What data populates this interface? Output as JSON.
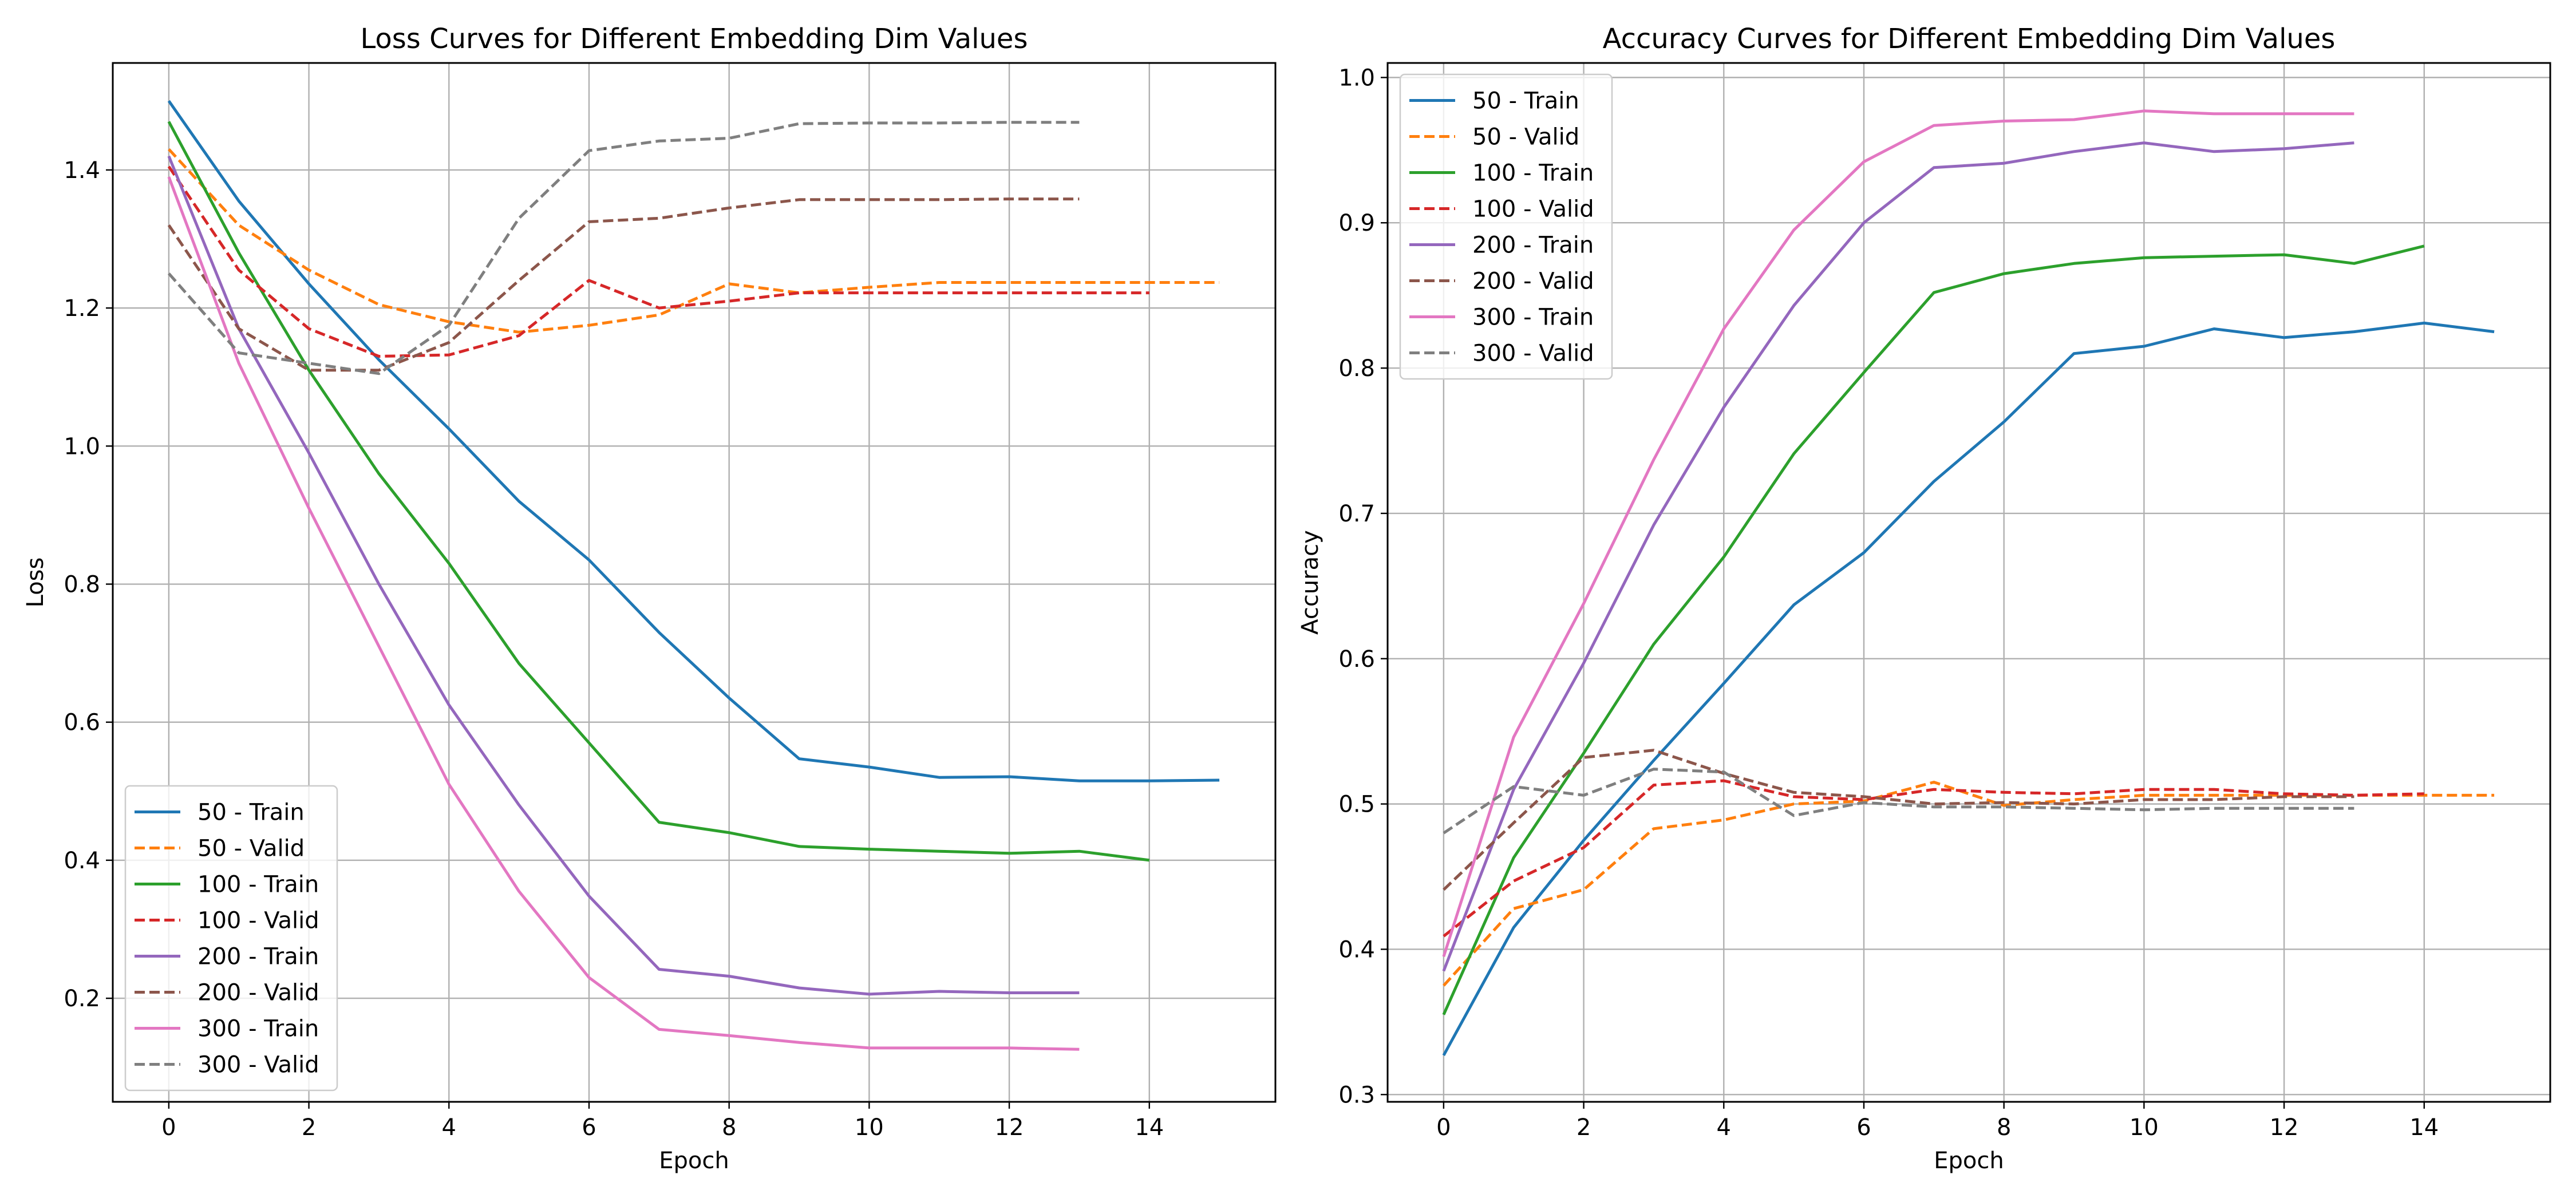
{
  "chart_data": [
    {
      "type": "line",
      "title": "Loss Curves for Different Embedding Dim Values",
      "xlabel": "Epoch",
      "ylabel": "Loss",
      "xlim": [
        -0.8,
        15.8
      ],
      "ylim": [
        0.05,
        1.555
      ],
      "xticks": [
        0,
        2,
        4,
        6,
        8,
        10,
        12,
        14
      ],
      "yticks": [
        0.2,
        0.4,
        0.6,
        0.8,
        1.0,
        1.2,
        1.4
      ],
      "grid": true,
      "legend_position": "lower-left",
      "series": [
        {
          "name": "50 - Train",
          "color": "#1f77b4",
          "dashed": false,
          "x": [
            0,
            1,
            2,
            3,
            4,
            5,
            6,
            7,
            8,
            9,
            10,
            11,
            12,
            13,
            14,
            15
          ],
          "y": [
            1.5,
            1.355,
            1.235,
            1.125,
            1.025,
            0.92,
            0.835,
            0.73,
            0.635,
            0.547,
            0.535,
            0.52,
            0.521,
            0.515,
            0.515,
            0.516
          ]
        },
        {
          "name": "50 - Valid",
          "color": "#ff7f0e",
          "dashed": true,
          "x": [
            0,
            1,
            2,
            3,
            4,
            5,
            6,
            7,
            8,
            9,
            10,
            11,
            12,
            13,
            14,
            15
          ],
          "y": [
            1.43,
            1.32,
            1.255,
            1.205,
            1.18,
            1.165,
            1.175,
            1.19,
            1.235,
            1.222,
            1.23,
            1.237,
            1.237,
            1.237,
            1.237,
            1.237
          ]
        },
        {
          "name": "100 - Train",
          "color": "#2ca02c",
          "dashed": false,
          "x": [
            0,
            1,
            2,
            3,
            4,
            5,
            6,
            7,
            8,
            9,
            10,
            11,
            12,
            13,
            14
          ],
          "y": [
            1.47,
            1.28,
            1.11,
            0.96,
            0.83,
            0.685,
            0.57,
            0.455,
            0.44,
            0.42,
            0.416,
            0.413,
            0.41,
            0.413,
            0.4
          ]
        },
        {
          "name": "100 - Valid",
          "color": "#d62728",
          "dashed": true,
          "x": [
            0,
            1,
            2,
            3,
            4,
            5,
            6,
            7,
            8,
            9,
            10,
            11,
            12,
            13,
            14
          ],
          "y": [
            1.405,
            1.255,
            1.17,
            1.13,
            1.132,
            1.16,
            1.24,
            1.2,
            1.21,
            1.222,
            1.222,
            1.222,
            1.222,
            1.222,
            1.222
          ]
        },
        {
          "name": "200 - Train",
          "color": "#9467bd",
          "dashed": false,
          "x": [
            0,
            1,
            2,
            3,
            4,
            5,
            6,
            7,
            8,
            9,
            10,
            11,
            12,
            13
          ],
          "y": [
            1.42,
            1.17,
            0.99,
            0.8,
            0.625,
            0.48,
            0.348,
            0.242,
            0.232,
            0.215,
            0.206,
            0.21,
            0.208,
            0.208
          ]
        },
        {
          "name": "200 - Valid",
          "color": "#8c564b",
          "dashed": true,
          "x": [
            0,
            1,
            2,
            3,
            4,
            5,
            6,
            7,
            8,
            9,
            10,
            11,
            12,
            13
          ],
          "y": [
            1.32,
            1.17,
            1.11,
            1.11,
            1.15,
            1.24,
            1.325,
            1.33,
            1.345,
            1.357,
            1.357,
            1.357,
            1.358,
            1.358
          ]
        },
        {
          "name": "300 - Train",
          "color": "#e377c2",
          "dashed": false,
          "x": [
            0,
            1,
            2,
            3,
            4,
            5,
            6,
            7,
            8,
            9,
            10,
            11,
            12,
            13
          ],
          "y": [
            1.39,
            1.12,
            0.91,
            0.71,
            0.51,
            0.355,
            0.23,
            0.155,
            0.146,
            0.136,
            0.128,
            0.128,
            0.128,
            0.126
          ]
        },
        {
          "name": "300 - Valid",
          "color": "#7f7f7f",
          "dashed": true,
          "x": [
            0,
            1,
            2,
            3,
            4,
            5,
            6,
            7,
            8,
            9,
            10,
            11,
            12,
            13
          ],
          "y": [
            1.25,
            1.135,
            1.12,
            1.105,
            1.175,
            1.33,
            1.428,
            1.442,
            1.446,
            1.467,
            1.468,
            1.468,
            1.469,
            1.469
          ]
        }
      ]
    },
    {
      "type": "line",
      "title": "Accuracy Curves for Different Embedding Dim Values",
      "xlabel": "Epoch",
      "ylabel": "Accuracy",
      "xlim": [
        -0.8,
        15.8
      ],
      "ylim": [
        0.295,
        1.01
      ],
      "xticks": [
        0,
        2,
        4,
        6,
        8,
        10,
        12,
        14
      ],
      "yticks": [
        0.3,
        0.4,
        0.5,
        0.6,
        0.7,
        0.8,
        0.9,
        1.0
      ],
      "grid": true,
      "legend_position": "upper-left",
      "series": [
        {
          "name": "50 - Train",
          "color": "#1f77b4",
          "dashed": false,
          "x": [
            0,
            1,
            2,
            3,
            4,
            5,
            6,
            7,
            8,
            9,
            10,
            11,
            12,
            13,
            14,
            15
          ],
          "y": [
            0.327,
            0.415,
            0.475,
            0.53,
            0.583,
            0.637,
            0.673,
            0.722,
            0.763,
            0.81,
            0.815,
            0.827,
            0.821,
            0.825,
            0.831,
            0.825
          ]
        },
        {
          "name": "50 - Valid",
          "color": "#ff7f0e",
          "dashed": true,
          "x": [
            0,
            1,
            2,
            3,
            4,
            5,
            6,
            7,
            8,
            9,
            10,
            11,
            12,
            13,
            14,
            15
          ],
          "y": [
            0.375,
            0.428,
            0.441,
            0.483,
            0.489,
            0.5,
            0.502,
            0.515,
            0.499,
            0.503,
            0.506,
            0.506,
            0.506,
            0.506,
            0.506,
            0.506
          ]
        },
        {
          "name": "100 - Train",
          "color": "#2ca02c",
          "dashed": false,
          "x": [
            0,
            1,
            2,
            3,
            4,
            5,
            6,
            7,
            8,
            9,
            10,
            11,
            12,
            13,
            14
          ],
          "y": [
            0.355,
            0.463,
            0.535,
            0.61,
            0.67,
            0.741,
            0.797,
            0.852,
            0.865,
            0.872,
            0.876,
            0.877,
            0.878,
            0.872,
            0.884
          ]
        },
        {
          "name": "100 - Valid",
          "color": "#d62728",
          "dashed": true,
          "x": [
            0,
            1,
            2,
            3,
            4,
            5,
            6,
            7,
            8,
            9,
            10,
            11,
            12,
            13,
            14
          ],
          "y": [
            0.409,
            0.447,
            0.47,
            0.513,
            0.516,
            0.505,
            0.503,
            0.51,
            0.508,
            0.507,
            0.51,
            0.51,
            0.507,
            0.506,
            0.507
          ]
        },
        {
          "name": "200 - Train",
          "color": "#9467bd",
          "dashed": false,
          "x": [
            0,
            1,
            2,
            3,
            4,
            5,
            6,
            7,
            8,
            9,
            10,
            11,
            12,
            13
          ],
          "y": [
            0.385,
            0.51,
            0.597,
            0.692,
            0.773,
            0.843,
            0.9,
            0.938,
            0.941,
            0.949,
            0.955,
            0.949,
            0.951,
            0.955
          ]
        },
        {
          "name": "200 - Valid",
          "color": "#8c564b",
          "dashed": true,
          "x": [
            0,
            1,
            2,
            3,
            4,
            5,
            6,
            7,
            8,
            9,
            10,
            11,
            12,
            13
          ],
          "y": [
            0.441,
            0.487,
            0.532,
            0.537,
            0.521,
            0.508,
            0.505,
            0.5,
            0.501,
            0.5,
            0.503,
            0.503,
            0.505,
            0.505
          ]
        },
        {
          "name": "300 - Train",
          "color": "#e377c2",
          "dashed": false,
          "x": [
            0,
            1,
            2,
            3,
            4,
            5,
            6,
            7,
            8,
            9,
            10,
            11,
            12,
            13
          ],
          "y": [
            0.395,
            0.546,
            0.638,
            0.737,
            0.827,
            0.895,
            0.942,
            0.967,
            0.97,
            0.971,
            0.977,
            0.975,
            0.975,
            0.975
          ]
        },
        {
          "name": "300 - Valid",
          "color": "#7f7f7f",
          "dashed": true,
          "x": [
            0,
            1,
            2,
            3,
            4,
            5,
            6,
            7,
            8,
            9,
            10,
            11,
            12,
            13
          ],
          "y": [
            0.48,
            0.512,
            0.506,
            0.524,
            0.522,
            0.492,
            0.501,
            0.498,
            0.498,
            0.497,
            0.496,
            0.497,
            0.497,
            0.497
          ]
        }
      ]
    }
  ]
}
